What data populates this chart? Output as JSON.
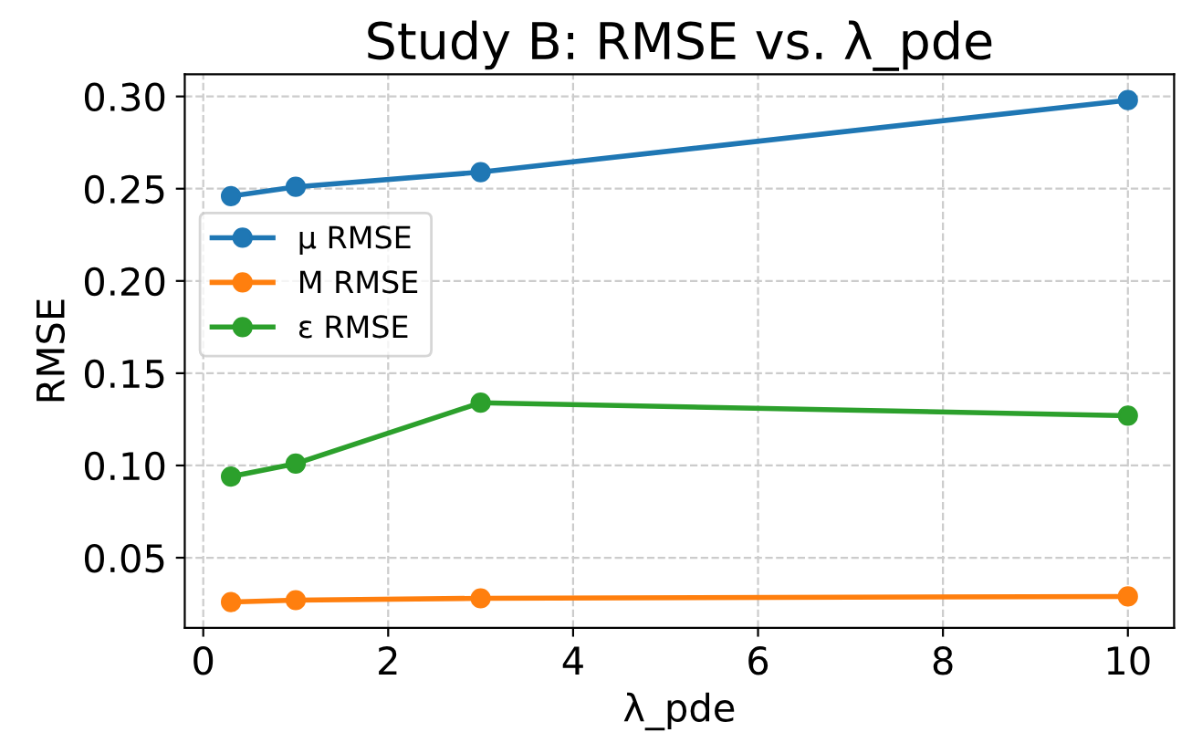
{
  "chart_data": {
    "type": "line",
    "title": "Study B: RMSE vs. λ_pde",
    "xlabel": "λ_pde",
    "ylabel": "RMSE",
    "x": [
      0.3,
      1,
      3,
      10
    ],
    "series": [
      {
        "name": "μ RMSE",
        "color": "#1f77b4",
        "values": [
          0.246,
          0.251,
          0.259,
          0.298
        ]
      },
      {
        "name": "M RMSE",
        "color": "#ff7f0e",
        "values": [
          0.026,
          0.027,
          0.028,
          0.029
        ]
      },
      {
        "name": "ε RMSE",
        "color": "#2ca02c",
        "values": [
          0.094,
          0.101,
          0.134,
          0.127
        ]
      }
    ],
    "xlim": [
      -0.2,
      10.5
    ],
    "ylim": [
      0.012,
      0.312
    ],
    "xticks": [
      0,
      2,
      4,
      6,
      8,
      10
    ],
    "yticks": [
      0.05,
      {
        "value": 0.1,
        "label": "0.10"
      },
      0.15,
      {
        "value": 0.2,
        "label": "0.20"
      },
      0.25,
      {
        "value": 0.3,
        "label": "0.30"
      }
    ],
    "grid": true,
    "legend": "center left",
    "marker": "circle",
    "line_style": "solid"
  }
}
